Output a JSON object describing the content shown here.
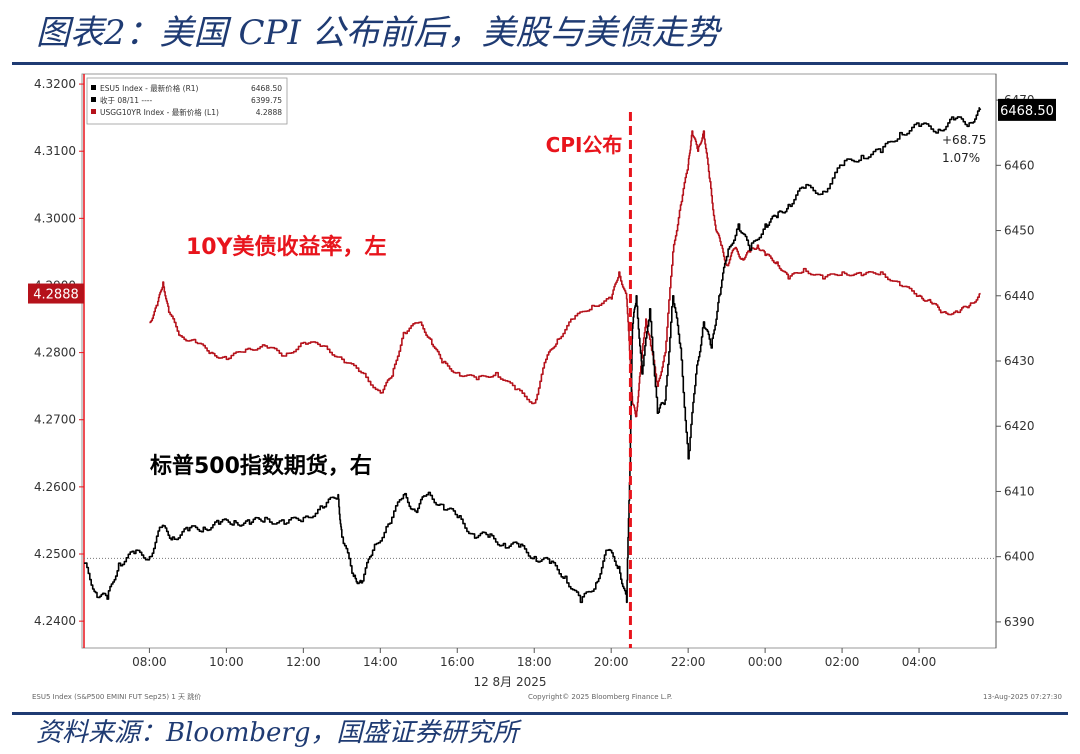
{
  "header": {
    "title": "图表2：美国 CPI 公布前后，美股与美债走势"
  },
  "footer": {
    "source": "资料来源：Bloomberg，国盛证券研究所"
  },
  "chart_data": {
    "type": "line",
    "colors": {
      "futures": "#000000",
      "yield": "#b5121b",
      "marker": "#e8141c"
    },
    "x_axis": {
      "ticks": [
        "08:00",
        "10:00",
        "12:00",
        "14:00",
        "16:00",
        "18:00",
        "20:00",
        "22:00",
        "00:00",
        "02:00",
        "04:00"
      ],
      "date_label": "12 8月 2025",
      "range": [
        6.3,
        30.0
      ]
    },
    "left_axis": {
      "ticks": [
        "4.3200",
        "4.3100",
        "4.3000",
        "4.2900",
        "4.2800",
        "4.2700",
        "4.2600",
        "4.2500",
        "4.2400"
      ],
      "range": [
        4.236,
        4.3215
      ],
      "last_value_badge": "4.2888"
    },
    "right_axis": {
      "ticks": [
        "6470",
        "6460",
        "6450",
        "6440",
        "6430",
        "6420",
        "6410",
        "6400",
        "6390"
      ],
      "range": [
        6386,
        6474
      ],
      "last_value_badge": "6468.50",
      "change_label": "+68.75",
      "change_pct": "1.07%"
    },
    "legend": {
      "placement": "top-left",
      "entries": [
        {
          "name": "ESU5 Index - 最新价格 (R1)",
          "value": "6468.50",
          "color": "#000000"
        },
        {
          "name": "收于 08/11 ----",
          "value": "6399.75",
          "color": "#000000"
        },
        {
          "name": "USGG10YR Index - 最新价格 (L1)",
          "value": "4.2888",
          "color": "#b5121b"
        }
      ]
    },
    "reference_line": {
      "name": "收于 08/11",
      "value": 6399.75
    },
    "event_marker": {
      "label": "CPI公布",
      "x": 20.5
    },
    "annotations": [
      {
        "text": "10Y美债收益率，左",
        "color": "#e8141c"
      },
      {
        "text": "标普500指数期货，右",
        "color": "#000000"
      }
    ],
    "bottom_notes": {
      "left": "ESU5 Index (S&P500 EMINI FUT Sep25) 1 天 跳价",
      "center": "Copyright© 2025 Bloomberg Finance L.P.",
      "right": "13-Aug-2025 07:27:30"
    },
    "series": [
      {
        "name": "USGG10YR Index",
        "axis": "left",
        "x": [
          8.0,
          8.2,
          8.35,
          8.5,
          8.8,
          9.2,
          9.6,
          10.0,
          10.5,
          11.0,
          11.5,
          12.0,
          12.5,
          13.0,
          13.5,
          14.0,
          14.3,
          14.6,
          15.0,
          15.3,
          15.6,
          16.0,
          16.5,
          17.0,
          17.5,
          18.0,
          18.3,
          18.6,
          19.0,
          19.5,
          20.0,
          20.2,
          20.4,
          20.5,
          20.55,
          20.65,
          20.75,
          20.9,
          21.0,
          21.2,
          21.4,
          21.6,
          21.8,
          22.0,
          22.1,
          22.25,
          22.4,
          22.55,
          22.7,
          22.85,
          23.0,
          23.2,
          23.4,
          23.6,
          23.8,
          24.0,
          24.3,
          24.6,
          25.0,
          25.5,
          26.0,
          26.5,
          27.0,
          27.5,
          28.0,
          28.3,
          28.6,
          29.0,
          29.3,
          29.6
        ],
        "values": [
          4.2845,
          4.287,
          4.2905,
          4.286,
          4.2825,
          4.2815,
          4.28,
          4.279,
          4.2805,
          4.281,
          4.2795,
          4.2815,
          4.281,
          4.279,
          4.277,
          4.274,
          4.2765,
          4.283,
          4.2845,
          4.282,
          4.2785,
          4.277,
          4.276,
          4.277,
          4.2745,
          4.2725,
          4.279,
          4.282,
          4.285,
          4.287,
          4.288,
          4.292,
          4.288,
          4.278,
          4.2725,
          4.2705,
          4.277,
          4.285,
          4.282,
          4.275,
          4.28,
          4.295,
          4.302,
          4.308,
          4.313,
          4.31,
          4.313,
          4.306,
          4.299,
          4.296,
          4.293,
          4.2955,
          4.294,
          4.295,
          4.296,
          4.2945,
          4.2935,
          4.291,
          4.2925,
          4.291,
          4.292,
          4.2915,
          4.292,
          4.29,
          4.2885,
          4.2875,
          4.286,
          4.286,
          4.287,
          4.2888
        ]
      },
      {
        "name": "ESU5 Index",
        "axis": "right",
        "x": [
          6.3,
          6.6,
          6.9,
          7.2,
          7.6,
          8.0,
          8.3,
          8.6,
          9.0,
          9.4,
          9.8,
          10.2,
          10.6,
          11.0,
          11.5,
          12.0,
          12.5,
          12.9,
          13.0,
          13.3,
          13.5,
          13.8,
          14.2,
          14.6,
          14.9,
          15.2,
          15.6,
          16.0,
          16.4,
          16.8,
          17.2,
          17.6,
          18.0,
          18.4,
          18.8,
          19.2,
          19.6,
          19.9,
          20.2,
          20.4,
          20.5,
          20.55,
          20.65,
          20.8,
          21.0,
          21.2,
          21.4,
          21.6,
          21.8,
          22.0,
          22.2,
          22.4,
          22.6,
          22.8,
          23.0,
          23.3,
          23.6,
          24.0,
          24.3,
          24.6,
          25.0,
          25.5,
          26.0,
          26.5,
          27.0,
          27.5,
          28.0,
          28.5,
          28.9,
          29.3,
          29.6
        ],
        "values": [
          6399.0,
          6394.5,
          6393.5,
          6399.0,
          6400.5,
          6400.0,
          6404.5,
          6403.0,
          6404.0,
          6404.5,
          6405.0,
          6405.5,
          6405.0,
          6406.0,
          6405.0,
          6406.0,
          6407.5,
          6409.5,
          6403.0,
          6397.0,
          6396.0,
          6401.0,
          6405.0,
          6409.5,
          6407.0,
          6409.5,
          6408.0,
          6406.0,
          6403.5,
          6403.0,
          6402.0,
          6401.5,
          6400.0,
          6399.0,
          6397.0,
          6393.0,
          6396.0,
          6401.0,
          6398.5,
          6393.0,
          6418.0,
          6435.0,
          6440.0,
          6428.0,
          6438.0,
          6422.0,
          6424.0,
          6440.0,
          6432.0,
          6415.0,
          6428.0,
          6436.0,
          6432.0,
          6440.0,
          6446.0,
          6451.0,
          6447.0,
          6451.0,
          6452.0,
          6454.0,
          6456.5,
          6456.0,
          6460.0,
          6461.5,
          6462.0,
          6465.0,
          6466.0,
          6465.5,
          6467.0,
          6466.5,
          6468.5
        ]
      }
    ]
  }
}
